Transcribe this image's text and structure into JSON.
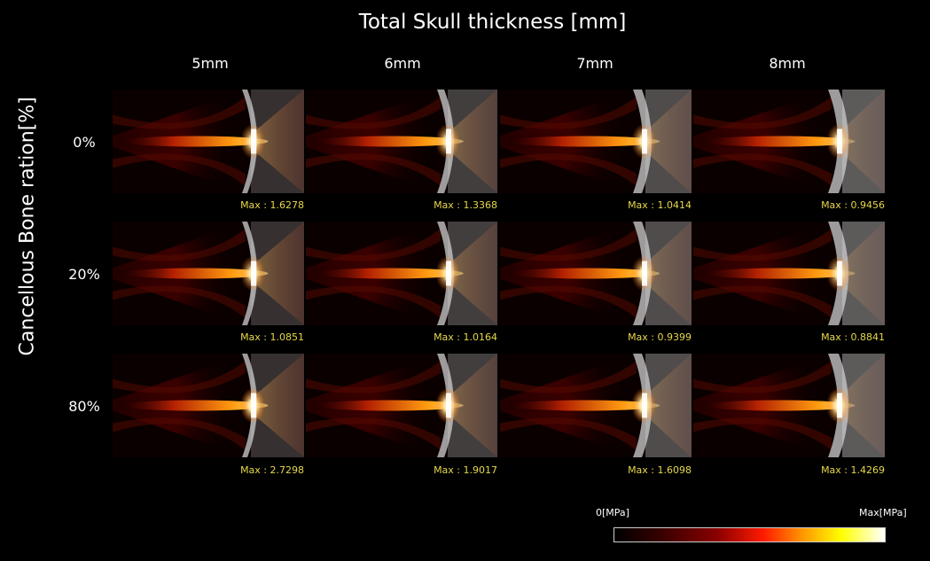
{
  "title": "Total Skull thickness [mm]",
  "y_axis_label": "Cancellous Bone ration[%]",
  "columns": [
    "5mm",
    "6mm",
    "7mm",
    "8mm"
  ],
  "rows": [
    "0%",
    "20%",
    "80%"
  ],
  "max_values": [
    [
      "Max : 1.6278",
      "Max : 1.3368",
      "Max : 1.0414",
      "Max : 0.9456"
    ],
    [
      "Max : 1.0851",
      "Max : 1.0164",
      "Max : 0.9399",
      "Max : 0.8841"
    ],
    [
      "Max : 2.7298",
      "Max : 1.9017",
      "Max : 1.6098",
      "Max : 1.4269"
    ]
  ],
  "colorbar": {
    "min_label": "0[MPa]",
    "max_label": "Max[MPa]",
    "colors": [
      "#000000",
      "#3a0000",
      "#8a0000",
      "#ff1a00",
      "#ff9a00",
      "#ffff00",
      "#ffffff"
    ]
  }
}
